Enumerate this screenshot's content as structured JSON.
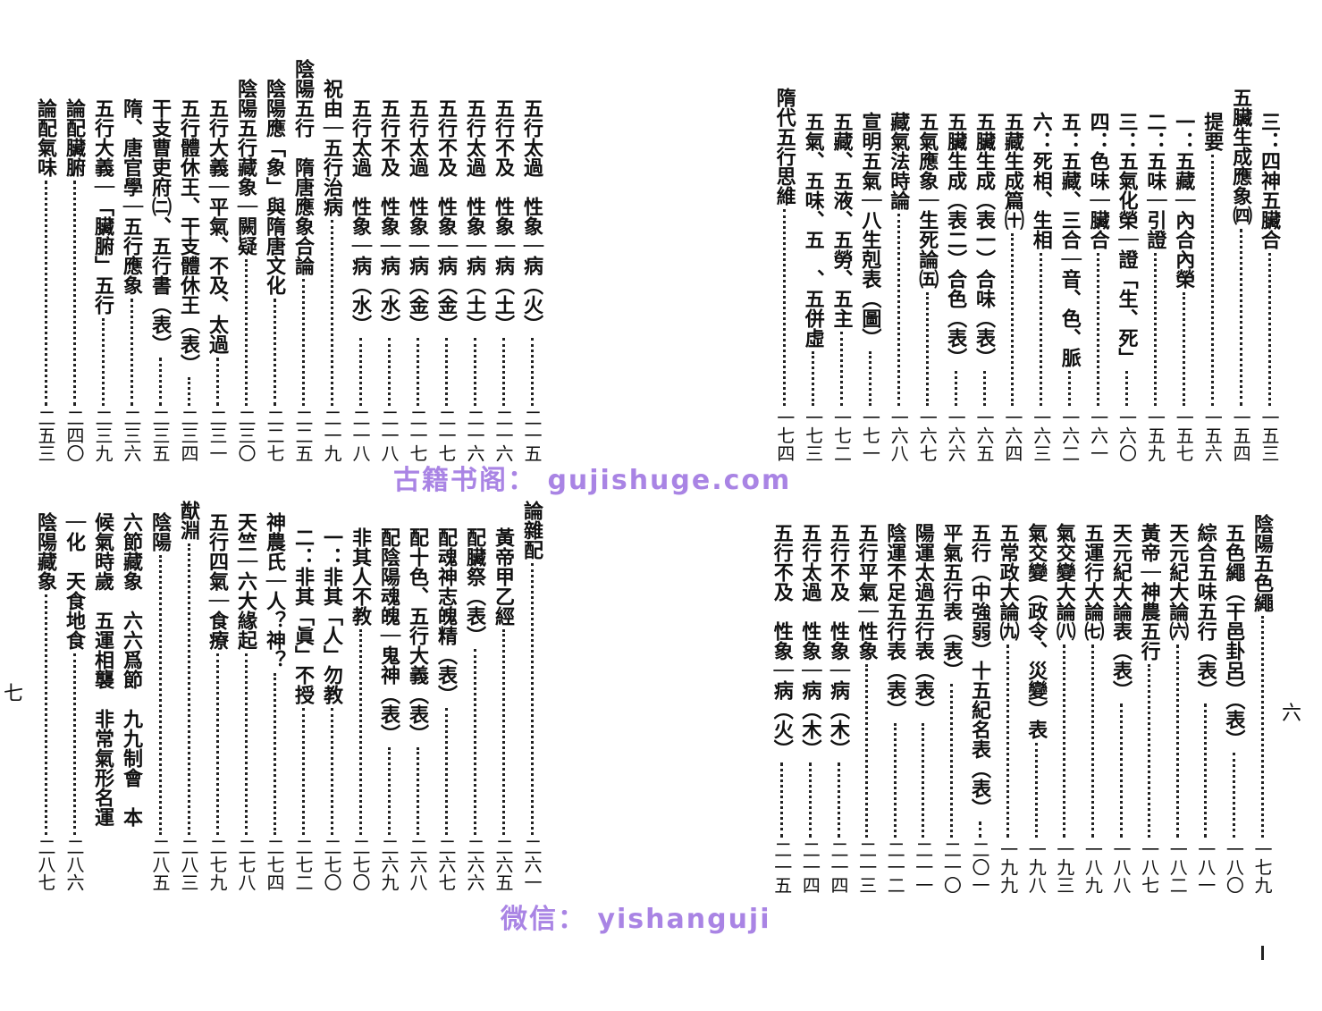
{
  "right_page": {
    "page_label": "六",
    "top": [
      {
        "title": "三：四神五臟合",
        "page": "一五三",
        "level": 1
      },
      {
        "title": "五臟生成應象㈣",
        "page": "一五四",
        "level": 0
      },
      {
        "title": "提要",
        "page": "一五六",
        "level": 1
      },
      {
        "title": "一：五藏｜內合內榮",
        "page": "一五七",
        "level": 1
      },
      {
        "title": "二：五味｜引證",
        "page": "一五九",
        "level": 1
      },
      {
        "title": "三：五氣化榮｜證「生、死」",
        "page": "一六〇",
        "level": 1
      },
      {
        "title": "四：色味｜臟合",
        "page": "一六一",
        "level": 1
      },
      {
        "title": "五：五藏、三合｜音、色、脈",
        "page": "一六二",
        "level": 1
      },
      {
        "title": "六：死相、生相",
        "page": "一六三",
        "level": 1
      },
      {
        "title": "五藏生成篇㈩",
        "page": "一六四",
        "level": 1
      },
      {
        "title": "五臟生成（表一）合味（表）",
        "page": "一六五",
        "level": 1
      },
      {
        "title": "五臟生成（表二）合色（表）",
        "page": "一六六",
        "level": 1
      },
      {
        "title": "五氣應象｜生死論㈤",
        "page": "一六七",
        "level": 1
      },
      {
        "title": "藏氣法時論",
        "page": "一六八",
        "level": 1
      },
      {
        "title": "宣明五氣｜八生剋表（圖）",
        "page": "一七一",
        "level": 1
      },
      {
        "title": "五藏、五液、五勞、五主",
        "page": "一七二",
        "level": 1
      },
      {
        "title": "五氣、五味、五　、五併虛",
        "page": "一七三",
        "level": 1
      },
      {
        "title": "隋代五行思維",
        "page": "一七四",
        "level": 0
      }
    ],
    "bottom": [
      {
        "title": "陰陽五色繩",
        "page": "一七九",
        "level": 0
      },
      {
        "title": "五色繩（干邑卦呂）（表）",
        "page": "一八〇",
        "level": 1
      },
      {
        "title": "綜合五味五行（表）",
        "page": "一八一",
        "level": 1
      },
      {
        "title": "天元紀大論㈥",
        "page": "一八二",
        "level": 1
      },
      {
        "title": "黃帝｜神農五行",
        "page": "一八七",
        "level": 1
      },
      {
        "title": "天元紀大論表（表）",
        "page": "一八八",
        "level": 1
      },
      {
        "title": "五運行大論㈦",
        "page": "一八九",
        "level": 1
      },
      {
        "title": "氣交變大論㈧",
        "page": "一九三",
        "level": 1
      },
      {
        "title": "氣交變（政令、災變）表",
        "page": "一九八",
        "level": 1
      },
      {
        "title": "五常政大論㈨",
        "page": "一九九",
        "level": 1
      },
      {
        "title": "五行（中強弱）十五紀名表（表）",
        "page": "二〇一",
        "level": 1
      },
      {
        "title": "平氣五行表（表）",
        "page": "二一〇",
        "level": 1
      },
      {
        "title": "陽運太過五行表（表）",
        "page": "二一一",
        "level": 1
      },
      {
        "title": "陰運不足五行表（表）",
        "page": "二一二",
        "level": 1
      },
      {
        "title": "五行平氣｜性象",
        "page": "二一三",
        "level": 1
      },
      {
        "title": "五行不及　性象｜病（木）",
        "page": "二一四",
        "level": 1
      },
      {
        "title": "五行太過　性象｜病（木）",
        "page": "二一四",
        "level": 1
      },
      {
        "title": "五行不及　性象｜病（火）",
        "page": "二一五",
        "level": 1
      }
    ]
  },
  "left_page": {
    "page_label": "七",
    "top": [
      {
        "title": "五行太過　性象｜病（火）",
        "page": "二一五",
        "level": 2
      },
      {
        "title": "五行不及　性象｜病（土）",
        "page": "二一六",
        "level": 2
      },
      {
        "title": "五行太過　性象｜病（土）",
        "page": "二一六",
        "level": 2
      },
      {
        "title": "五行不及　性象｜病（金）",
        "page": "二一七",
        "level": 2
      },
      {
        "title": "五行太過　性象｜病（金）",
        "page": "二一七",
        "level": 2
      },
      {
        "title": "五行不及　性象｜病（水）",
        "page": "二一八",
        "level": 2
      },
      {
        "title": "五行太過　性象｜病（水）",
        "page": "二一八",
        "level": 2
      },
      {
        "title": "祝由｜五行治病",
        "page": "二一九",
        "level": 1
      },
      {
        "title": "陰陽五行　隋唐應象合論",
        "page": "二二五",
        "level": 0
      },
      {
        "title": "陰陽應「象」與隋唐文化",
        "page": "二二七",
        "level": 1
      },
      {
        "title": "陰陽五行藏象｜闕疑",
        "page": "二三〇",
        "level": 1
      },
      {
        "title": "五行大義｜平氣、不及、太過",
        "page": "二三一",
        "level": 2
      },
      {
        "title": "五行體休王、干支體休王（表）",
        "page": "二三四",
        "level": 2
      },
      {
        "title": "干支曹吏府㈡、五行書（表）",
        "page": "二三五",
        "level": 2
      },
      {
        "title": "隋、唐官學｜五行應象",
        "page": "二三六",
        "level": 2
      },
      {
        "title": "五行大義｜「臟腑」五行",
        "page": "二三九",
        "level": 2
      },
      {
        "title": "論配臟腑",
        "page": "二四〇",
        "level": 2
      },
      {
        "title": "論配氣味",
        "page": "二五三",
        "level": 2
      }
    ],
    "bottom": [
      {
        "title": "論雜配",
        "page": "二六一",
        "level": 0
      },
      {
        "title": "黃帝甲乙經",
        "page": "二六五",
        "level": 2
      },
      {
        "title": "配臟祭（表）",
        "page": "二六六",
        "level": 2
      },
      {
        "title": "配魂神志魄精（表）",
        "page": "二六七",
        "level": 2
      },
      {
        "title": "配十色、五行大義（表）",
        "page": "二六八",
        "level": 2
      },
      {
        "title": "配陰陽魂魄｜鬼神（表）",
        "page": "二六九",
        "level": 2
      },
      {
        "title": "非其人不教",
        "page": "二七〇",
        "level": 2
      },
      {
        "title": "一：非其「人」勿教",
        "page": "二七〇",
        "level": 2
      },
      {
        "title": "二：非其「眞」不授",
        "page": "二七二",
        "level": 2
      },
      {
        "title": "神農氏｜人？神？",
        "page": "二七四",
        "level": 1
      },
      {
        "title": "天竺｜六大緣起",
        "page": "二七八",
        "level": 1
      },
      {
        "title": "五行四氣｜食療",
        "page": "二七九",
        "level": 1
      },
      {
        "title": "猷淵",
        "page": "二八三",
        "level": 0
      },
      {
        "title": "陰陽",
        "page": "二八五",
        "level": 1
      },
      {
        "title": "六節藏象　六六爲節　九九制會　本",
        "page": "",
        "level": 1
      },
      {
        "title": "候氣時歲　五運相襲　非常氣形名運",
        "page": "",
        "level": 1
      },
      {
        "title": "｜化　天食地食",
        "page": "二八六",
        "level": 1
      },
      {
        "title": "陰陽藏象",
        "page": "二八七",
        "level": 1
      }
    ]
  },
  "watermark": {
    "line1": "古籍书阁： gujishuge.com",
    "line2": "微信： yishanguji",
    "color": "#9b6fe0"
  }
}
